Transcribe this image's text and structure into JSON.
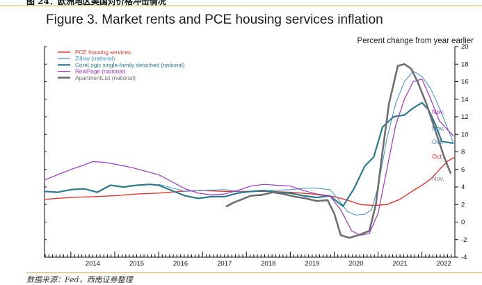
{
  "header": {
    "fragment": "图 24：欧洲地区美国对价格冲击情况"
  },
  "footer": {
    "source": "数据来源：Fed，西南证券整理"
  },
  "colors": {
    "pce": "#e0382b",
    "zillow": "#3f8fd0",
    "corelogic": "#2a7a8c",
    "realpage": "#a033c0",
    "apartmentlist": "#6e6e6e",
    "axis": "#000000"
  },
  "chart_data": {
    "type": "line",
    "title": "Figure 3. Market rents and PCE housing services inflation",
    "ylabel": "Percent change from year earlier",
    "ylim": [
      -4,
      20
    ],
    "xlim": [
      2013.4,
      2022.75
    ],
    "x_ticks": [
      "2014",
      "2015",
      "2016",
      "2017",
      "2018",
      "2019",
      "2020",
      "2021",
      "2022"
    ],
    "y_ticks": [
      20,
      18,
      16,
      14,
      12,
      10,
      8,
      6,
      4,
      2,
      0,
      -2,
      -4
    ],
    "legend_position": "top-left",
    "series": [
      {
        "name": "PCE housing services",
        "key": "pce",
        "color": "#e0382b",
        "width": 1.4,
        "end_label": "Oct.",
        "end_label_color": "#e0382b",
        "points": [
          [
            2013.4,
            2.6
          ],
          [
            2014.0,
            2.8
          ],
          [
            2014.5,
            2.9
          ],
          [
            2015.0,
            3.0
          ],
          [
            2015.5,
            3.2
          ],
          [
            2016.0,
            3.3
          ],
          [
            2016.5,
            3.5
          ],
          [
            2017.0,
            3.6
          ],
          [
            2017.5,
            3.5
          ],
          [
            2018.0,
            3.5
          ],
          [
            2018.5,
            3.5
          ],
          [
            2019.0,
            3.4
          ],
          [
            2019.5,
            3.2
          ],
          [
            2020.0,
            2.9
          ],
          [
            2020.3,
            2.5
          ],
          [
            2020.6,
            2.0
          ],
          [
            2020.9,
            1.9
          ],
          [
            2021.2,
            2.0
          ],
          [
            2021.5,
            2.6
          ],
          [
            2021.8,
            3.6
          ],
          [
            2022.0,
            4.2
          ],
          [
            2022.2,
            4.9
          ],
          [
            2022.4,
            6.0
          ],
          [
            2022.6,
            7.0
          ],
          [
            2022.75,
            7.4
          ]
        ]
      },
      {
        "name": "Zillow (national)",
        "key": "zillow",
        "color": "#3f8fd0",
        "width": 1.0,
        "end_label": "Oct.",
        "end_label_color": "#3f8fd0",
        "points": [
          [
            2016.0,
            4.3
          ],
          [
            2016.3,
            3.9
          ],
          [
            2016.6,
            3.5
          ],
          [
            2017.0,
            3.6
          ],
          [
            2017.5,
            3.7
          ],
          [
            2018.0,
            3.4
          ],
          [
            2018.5,
            3.6
          ],
          [
            2019.0,
            3.7
          ],
          [
            2019.5,
            3.9
          ],
          [
            2019.9,
            3.7
          ],
          [
            2020.1,
            2.6
          ],
          [
            2020.3,
            1.2
          ],
          [
            2020.5,
            0.8
          ],
          [
            2020.7,
            0.9
          ],
          [
            2020.85,
            1.4
          ],
          [
            2021.0,
            4.0
          ],
          [
            2021.2,
            9.5
          ],
          [
            2021.4,
            13.5
          ],
          [
            2021.6,
            16.0
          ],
          [
            2021.8,
            17.2
          ],
          [
            2022.0,
            16.6
          ],
          [
            2022.2,
            15.2
          ],
          [
            2022.4,
            13.0
          ],
          [
            2022.6,
            10.5
          ],
          [
            2022.72,
            9.0
          ]
        ]
      },
      {
        "name": "CoreLogic single-family detached (national)",
        "key": "corelogic",
        "color": "#2a7a8c",
        "width": 2.2,
        "end_label": "Nov.",
        "end_label_color": "#2f6fb0",
        "points": [
          [
            2013.4,
            3.5
          ],
          [
            2013.7,
            3.4
          ],
          [
            2014.0,
            3.7
          ],
          [
            2014.3,
            3.8
          ],
          [
            2014.6,
            3.4
          ],
          [
            2014.9,
            4.2
          ],
          [
            2015.2,
            4.0
          ],
          [
            2015.5,
            4.2
          ],
          [
            2015.8,
            4.3
          ],
          [
            2016.0,
            4.2
          ],
          [
            2016.3,
            3.6
          ],
          [
            2016.6,
            3.0
          ],
          [
            2016.9,
            2.7
          ],
          [
            2017.2,
            2.9
          ],
          [
            2017.5,
            2.9
          ],
          [
            2017.8,
            3.3
          ],
          [
            2018.1,
            3.5
          ],
          [
            2018.4,
            3.6
          ],
          [
            2018.7,
            3.4
          ],
          [
            2019.0,
            3.3
          ],
          [
            2019.3,
            3.0
          ],
          [
            2019.6,
            2.8
          ],
          [
            2019.9,
            3.0
          ],
          [
            2020.2,
            1.8
          ],
          [
            2020.45,
            3.8
          ],
          [
            2020.7,
            6.4
          ],
          [
            2020.9,
            7.4
          ],
          [
            2021.1,
            10.8
          ],
          [
            2021.35,
            12.0
          ],
          [
            2021.6,
            12.2
          ],
          [
            2021.8,
            13.0
          ],
          [
            2022.0,
            13.6
          ],
          [
            2022.15,
            12.8
          ],
          [
            2022.3,
            11.2
          ],
          [
            2022.45,
            9.2
          ],
          [
            2022.7,
            9.0
          ]
        ]
      },
      {
        "name": "RealPage (national)",
        "key": "realpage",
        "color": "#a033c0",
        "width": 1.2,
        "end_label": "Nov.",
        "end_label_color": "#a033c0",
        "points": [
          [
            2013.4,
            4.8
          ],
          [
            2013.7,
            5.4
          ],
          [
            2014.0,
            6.0
          ],
          [
            2014.3,
            6.5
          ],
          [
            2014.5,
            6.9
          ],
          [
            2014.8,
            6.8
          ],
          [
            2015.1,
            6.5
          ],
          [
            2015.4,
            6.2
          ],
          [
            2015.7,
            5.8
          ],
          [
            2016.0,
            5.4
          ],
          [
            2016.3,
            4.6
          ],
          [
            2016.6,
            3.8
          ],
          [
            2016.9,
            3.3
          ],
          [
            2017.2,
            3.1
          ],
          [
            2017.5,
            3.2
          ],
          [
            2017.8,
            3.6
          ],
          [
            2018.1,
            4.1
          ],
          [
            2018.4,
            4.3
          ],
          [
            2018.7,
            4.2
          ],
          [
            2019.0,
            4.1
          ],
          [
            2019.3,
            3.6
          ],
          [
            2019.6,
            3.2
          ],
          [
            2019.9,
            3.0
          ],
          [
            2020.15,
            1.4
          ],
          [
            2020.4,
            -1.0
          ],
          [
            2020.6,
            -1.5
          ],
          [
            2020.8,
            -1.3
          ],
          [
            2021.0,
            1.0
          ],
          [
            2021.2,
            6.0
          ],
          [
            2021.4,
            11.0
          ],
          [
            2021.6,
            14.0
          ],
          [
            2021.8,
            16.0
          ],
          [
            2022.0,
            16.3
          ],
          [
            2022.2,
            14.0
          ],
          [
            2022.4,
            11.5
          ],
          [
            2022.72,
            9.8
          ]
        ]
      },
      {
        "name": "ApartmentList (national)",
        "key": "apartmentlist",
        "color": "#6e6e6e",
        "width": 2.6,
        "end_label": "Nov.",
        "end_label_color": "#888888",
        "points": [
          [
            2017.55,
            1.8
          ],
          [
            2017.7,
            2.2
          ],
          [
            2017.9,
            2.6
          ],
          [
            2018.1,
            3.0
          ],
          [
            2018.35,
            3.1
          ],
          [
            2018.6,
            3.4
          ],
          [
            2018.85,
            3.2
          ],
          [
            2019.1,
            2.9
          ],
          [
            2019.35,
            2.7
          ],
          [
            2019.6,
            2.4
          ],
          [
            2019.85,
            2.5
          ],
          [
            2020.0,
            1.0
          ],
          [
            2020.15,
            -1.5
          ],
          [
            2020.35,
            -1.8
          ],
          [
            2020.6,
            -1.4
          ],
          [
            2020.8,
            -1.0
          ],
          [
            2020.95,
            2.0
          ],
          [
            2021.1,
            8.0
          ],
          [
            2021.25,
            13.5
          ],
          [
            2021.45,
            17.8
          ],
          [
            2021.6,
            18.0
          ],
          [
            2021.75,
            17.5
          ],
          [
            2021.9,
            16.0
          ],
          [
            2022.1,
            13.5
          ],
          [
            2022.3,
            10.5
          ],
          [
            2022.5,
            7.5
          ],
          [
            2022.65,
            5.6
          ]
        ]
      }
    ],
    "annotations": [
      {
        "text": "Nov.",
        "key": "realpage",
        "y": 12.3
      },
      {
        "text": "Nov.",
        "key": "corelogic",
        "y": 10.4
      },
      {
        "text": "Oct.",
        "key": "zillow",
        "y": 8.9
      },
      {
        "text": "Oct.",
        "key": "pce",
        "y": 7.2
      },
      {
        "text": "Nov.",
        "key": "apartmentlist",
        "y": 4.7
      }
    ]
  }
}
